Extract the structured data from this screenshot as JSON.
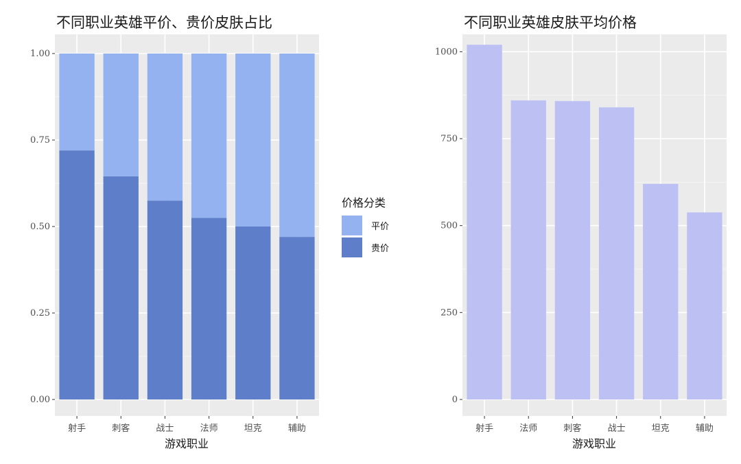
{
  "chart_data": [
    {
      "type": "bar",
      "stacked": true,
      "title": "不同职业英雄平价、贵价皮肤占比",
      "xlabel": "游戏职业",
      "ylabel": "",
      "ylim": [
        0,
        1
      ],
      "yticks": [
        "0.00",
        "0.25",
        "0.50",
        "0.75",
        "1.00"
      ],
      "categories": [
        "射手",
        "刺客",
        "战士",
        "法师",
        "坦克",
        "辅助"
      ],
      "series": [
        {
          "name": "贵价",
          "color": "#5f7ec9",
          "values": [
            0.72,
            0.645,
            0.575,
            0.525,
            0.5,
            0.47
          ]
        },
        {
          "name": "平价",
          "color": "#93b2ef",
          "values": [
            0.28,
            0.355,
            0.425,
            0.475,
            0.5,
            0.53
          ]
        }
      ],
      "legend": {
        "title": "价格分类",
        "position": "right",
        "items": [
          {
            "label": "平价",
            "color": "#93b2ef"
          },
          {
            "label": "贵价",
            "color": "#5f7ec9"
          }
        ]
      },
      "grid": true
    },
    {
      "type": "bar",
      "title": "不同职业英雄皮肤平均价格",
      "xlabel": "游戏职业",
      "ylabel": "",
      "ylim": [
        0,
        1050
      ],
      "yticks": [
        "0",
        "250",
        "500",
        "750",
        "1000"
      ],
      "categories": [
        "射手",
        "法师",
        "刺客",
        "战士",
        "坦克",
        "辅助"
      ],
      "values": [
        1020,
        860,
        858,
        840,
        620,
        538
      ],
      "color": "#bcc0f2",
      "grid": true
    }
  ]
}
